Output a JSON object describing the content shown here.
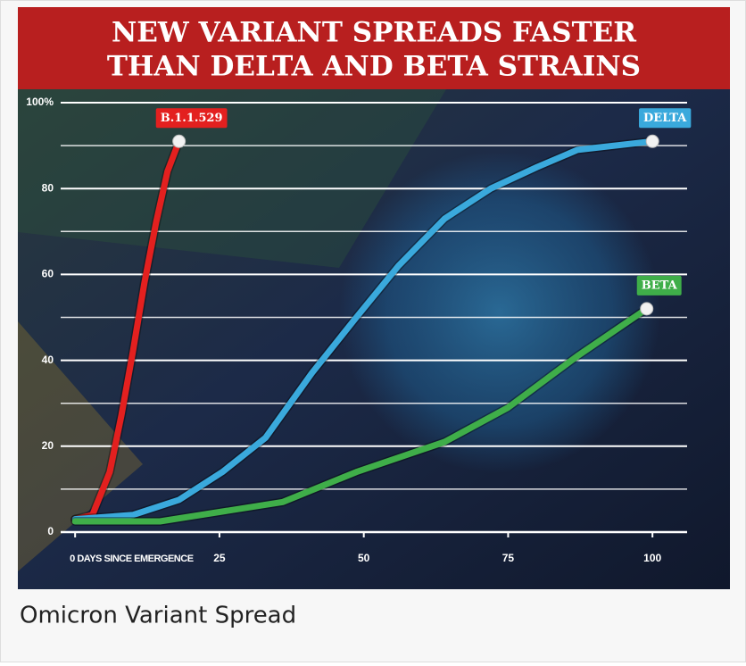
{
  "chart_data": {
    "type": "line",
    "title_lines": [
      "NEW VARIANT SPREADS FASTER",
      "THAN DELTA AND BETA STRAINS"
    ],
    "xlim": [
      -2.5,
      106
    ],
    "xticks": [
      {
        "value": 0,
        "label": "0 DAYS SINCE EMERGENCE"
      },
      25,
      50,
      75,
      100
    ],
    "ylim": [
      0,
      100
    ],
    "yticks": [
      0,
      20,
      40,
      60,
      80,
      {
        "value": 100,
        "label": "100%"
      }
    ],
    "minor_yticks": [
      10,
      30,
      50,
      70,
      90
    ],
    "grid": true,
    "series": [
      {
        "name": "B.1.1.529",
        "color": "#e3201f",
        "x": [
          0,
          3,
          6,
          8,
          10,
          12,
          14,
          16,
          18
        ],
        "values": [
          3,
          4,
          14,
          27,
          42,
          58,
          72,
          84,
          91
        ]
      },
      {
        "name": "DELTA",
        "color": "#3aa9dc",
        "x": [
          0,
          10,
          18,
          25.5,
          33,
          41,
          48.7,
          56,
          64,
          72,
          80,
          87,
          100
        ],
        "values": [
          3,
          4,
          7.5,
          14,
          22,
          37,
          50,
          62,
          73,
          80,
          85,
          89,
          91
        ]
      },
      {
        "name": "BETA",
        "color": "#3fae49",
        "x": [
          0,
          14.7,
          36,
          48.7,
          64,
          75,
          87,
          99
        ],
        "values": [
          2.5,
          2.5,
          7,
          14,
          21,
          29,
          41,
          52
        ]
      }
    ]
  },
  "caption": "Omicron Variant Spread"
}
